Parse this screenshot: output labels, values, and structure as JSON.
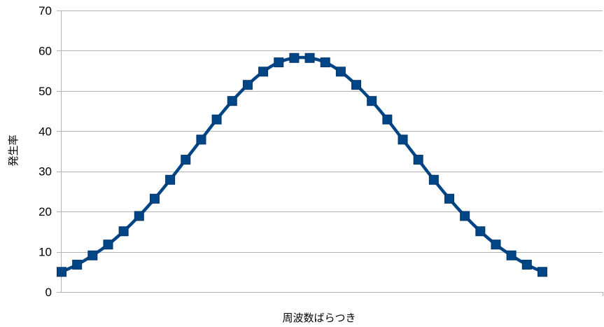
{
  "chart_data": {
    "type": "line",
    "title": "",
    "xlabel": "周波数ばらつき",
    "ylabel": "発生率",
    "ylim": [
      0,
      70
    ],
    "yticks": [
      0,
      10,
      20,
      30,
      40,
      50,
      60,
      70
    ],
    "grid": true,
    "legend": "none",
    "colors": {
      "line": "#004586",
      "marker": "#004586",
      "grid": "#b3b3b3"
    },
    "x": [
      1,
      2,
      3,
      4,
      5,
      6,
      7,
      8,
      9,
      10,
      11,
      12,
      13,
      14,
      15,
      16,
      17,
      18,
      19,
      20,
      21,
      22,
      23,
      24,
      25,
      26,
      27,
      28,
      29,
      30,
      31,
      32
    ],
    "series": [
      {
        "values": [
          5.0,
          6.8,
          9.1,
          11.8,
          15.1,
          18.9,
          23.2,
          27.9,
          32.9,
          37.9,
          42.9,
          47.5,
          51.5,
          54.8,
          57.1,
          58.2,
          58.2,
          57.1,
          54.8,
          51.5,
          47.5,
          42.9,
          37.9,
          32.9,
          27.9,
          23.2,
          18.9,
          15.1,
          11.8,
          9.1,
          6.8,
          5.0
        ]
      }
    ]
  }
}
